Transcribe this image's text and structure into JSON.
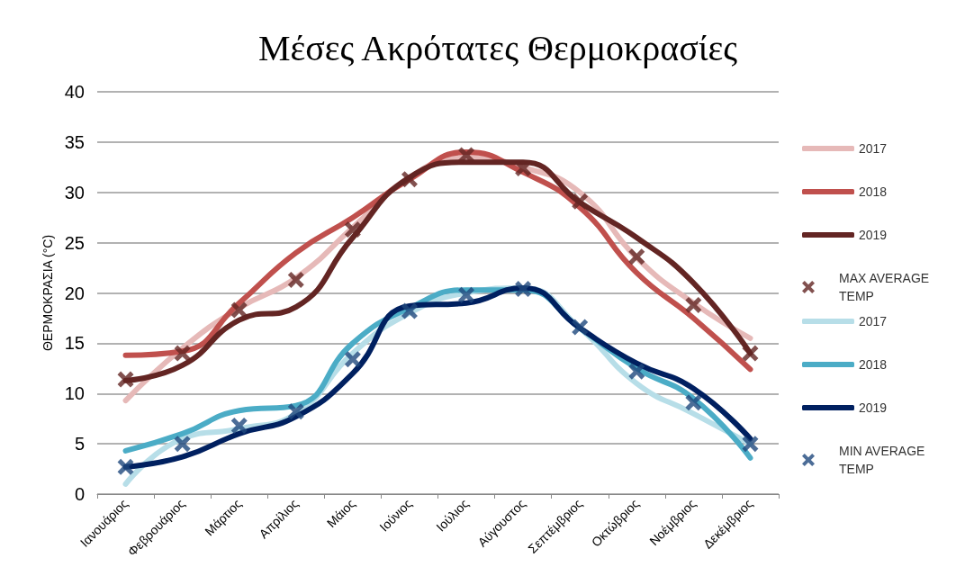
{
  "chart_data": {
    "type": "line",
    "title": "Μέσες Ακρότατες Θερμοκρασίες",
    "ylabel": "ΘΕΡΜΟΚΡΑΣΙΑ (°C)",
    "categories": [
      "Ιανουάριος",
      "Φεβρουάριος",
      "Μάρτιος",
      "Απρίλιος",
      "Μάιος",
      "Ιούνιος",
      "Ιούλιος",
      "Αύγουστος",
      "Σεπτέμβριος",
      "Οκτώβριος",
      "Νοέμβριος",
      "Δεκέμβριος"
    ],
    "series": [
      {
        "name": "2017",
        "type": "line",
        "color": "#e6b9b8",
        "values": [
          9.3,
          14.5,
          18.5,
          21.5,
          26.5,
          31.5,
          33.5,
          32.5,
          30,
          23.5,
          19,
          15.5
        ]
      },
      {
        "name": "2018",
        "type": "line",
        "color": "#c0504d",
        "values": [
          13.8,
          14.2,
          19,
          24,
          27.5,
          31.3,
          34,
          32,
          28.5,
          22,
          17.5,
          12.4
        ]
      },
      {
        "name": "2019",
        "type": "line",
        "color": "#632523",
        "values": [
          11.3,
          12.8,
          17.3,
          18.6,
          25.5,
          31.5,
          33,
          33,
          29,
          25.5,
          21,
          14
        ]
      },
      {
        "name": "MAX AVERAGE TEMP",
        "type": "scatter",
        "marker": "cross",
        "color": "#632523",
        "values": [
          11.4,
          14,
          18.3,
          21.3,
          26.3,
          31.3,
          33.7,
          32.4,
          29.1,
          23.6,
          18.8,
          14
        ]
      },
      {
        "name": "2017",
        "type": "line",
        "color": "#b7dee8",
        "values": [
          1,
          5.5,
          6.5,
          8,
          14,
          18,
          20,
          20.5,
          16.5,
          11,
          8,
          5
        ]
      },
      {
        "name": "2018",
        "type": "line",
        "color": "#4bacc6",
        "values": [
          4.3,
          6,
          8.3,
          8.8,
          15,
          18.5,
          20.3,
          20.3,
          16.5,
          12.5,
          9.5,
          3.6
        ]
      },
      {
        "name": "2019",
        "type": "line",
        "color": "#002060",
        "values": [
          2.7,
          3.7,
          6,
          7.7,
          12,
          18.7,
          19,
          20.5,
          16.5,
          13,
          10.5,
          5.5
        ]
      },
      {
        "name": "MIN AVERAGE TEMP",
        "type": "scatter",
        "marker": "cross",
        "color": "#1f497d",
        "values": [
          2.7,
          5,
          6.8,
          8.2,
          13.4,
          18.2,
          19.8,
          20.4,
          16.6,
          12.2,
          9.1,
          5
        ]
      }
    ],
    "ylim": [
      0,
      40
    ],
    "yticks": [
      0,
      5,
      10,
      15,
      20,
      25,
      30,
      35,
      40
    ],
    "grid": "y",
    "legend": "right",
    "marker": "none",
    "line_style": "solid"
  }
}
